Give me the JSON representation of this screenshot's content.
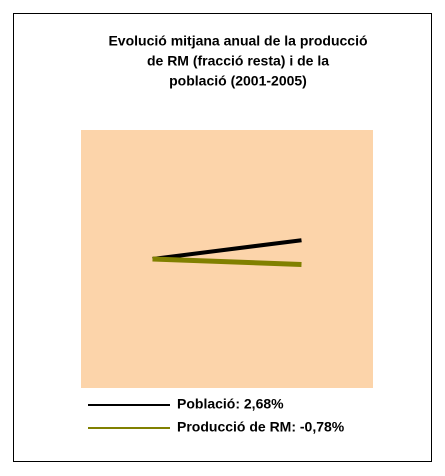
{
  "chart_data": {
    "type": "line",
    "title": [
      "Evolució mitjana anual de la producció",
      "de RM (fracció resta) i de la",
      "població (2001-2005)"
    ],
    "x": [
      0,
      1
    ],
    "xlim": [
      -0.48,
      1.48
    ],
    "ylim": [
      -18.4,
      18.4
    ],
    "series": [
      {
        "name": "Població: 2,68%",
        "color": "#000000",
        "values": [
          0,
          2.68
        ]
      },
      {
        "name": "Producció de RM: -0,78%",
        "color": "#808000",
        "values": [
          0,
          -0.78
        ]
      }
    ]
  }
}
